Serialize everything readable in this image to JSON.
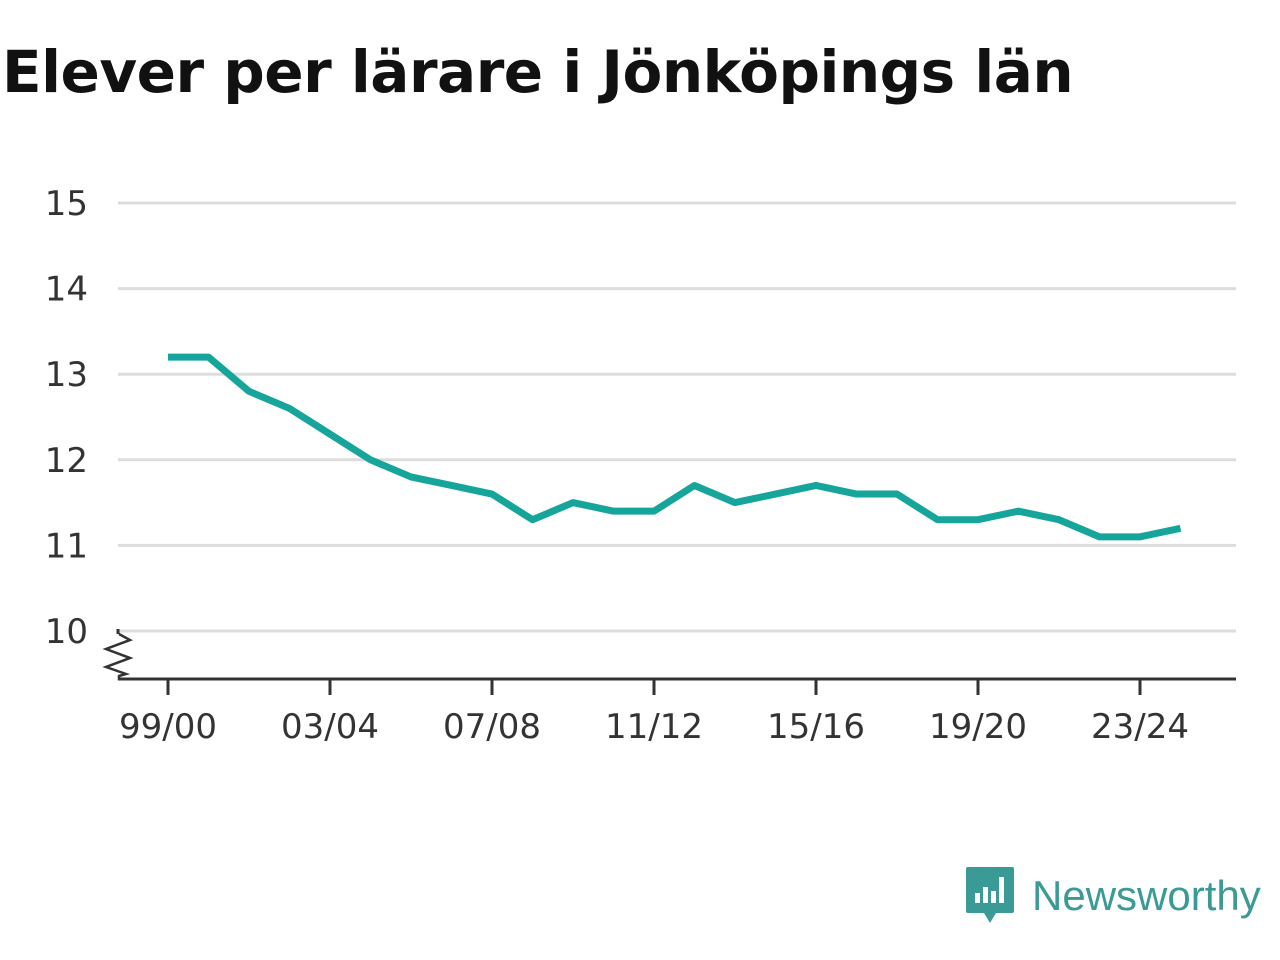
{
  "colors": {
    "line": "#16a59a",
    "grid": "#dddddd",
    "axis": "#333333",
    "brand": "#3a9a95"
  },
  "brand": {
    "name": "Newsworthy",
    "icon": "bar-chart-speech-bubble-icon"
  },
  "chart_data": {
    "type": "line",
    "title": "Elever per lärare i Jönköpings län",
    "xlabel": "",
    "ylabel": "",
    "ylim": [
      9.45,
      15
    ],
    "y_ticks": [
      10,
      11,
      12,
      13,
      14,
      15
    ],
    "y_axis_break": true,
    "grid": true,
    "x_tick_labels": [
      "99/00",
      "03/04",
      "07/08",
      "11/12",
      "15/16",
      "19/20",
      "23/24"
    ],
    "x": [
      "99/00",
      "00/01",
      "01/02",
      "02/03",
      "03/04",
      "04/05",
      "05/06",
      "06/07",
      "07/08",
      "08/09",
      "09/10",
      "10/11",
      "11/12",
      "12/13",
      "13/14",
      "14/15",
      "15/16",
      "16/17",
      "17/18",
      "18/19",
      "19/20",
      "20/21",
      "21/22",
      "22/23",
      "23/24",
      "24/25"
    ],
    "series": [
      {
        "values": [
          13.2,
          13.2,
          12.8,
          12.6,
          12.3,
          12.0,
          11.8,
          11.7,
          11.6,
          11.3,
          11.5,
          11.4,
          11.4,
          11.7,
          11.5,
          11.6,
          11.7,
          11.6,
          11.6,
          11.3,
          11.3,
          11.4,
          11.3,
          11.1,
          11.1,
          11.2
        ]
      }
    ]
  }
}
